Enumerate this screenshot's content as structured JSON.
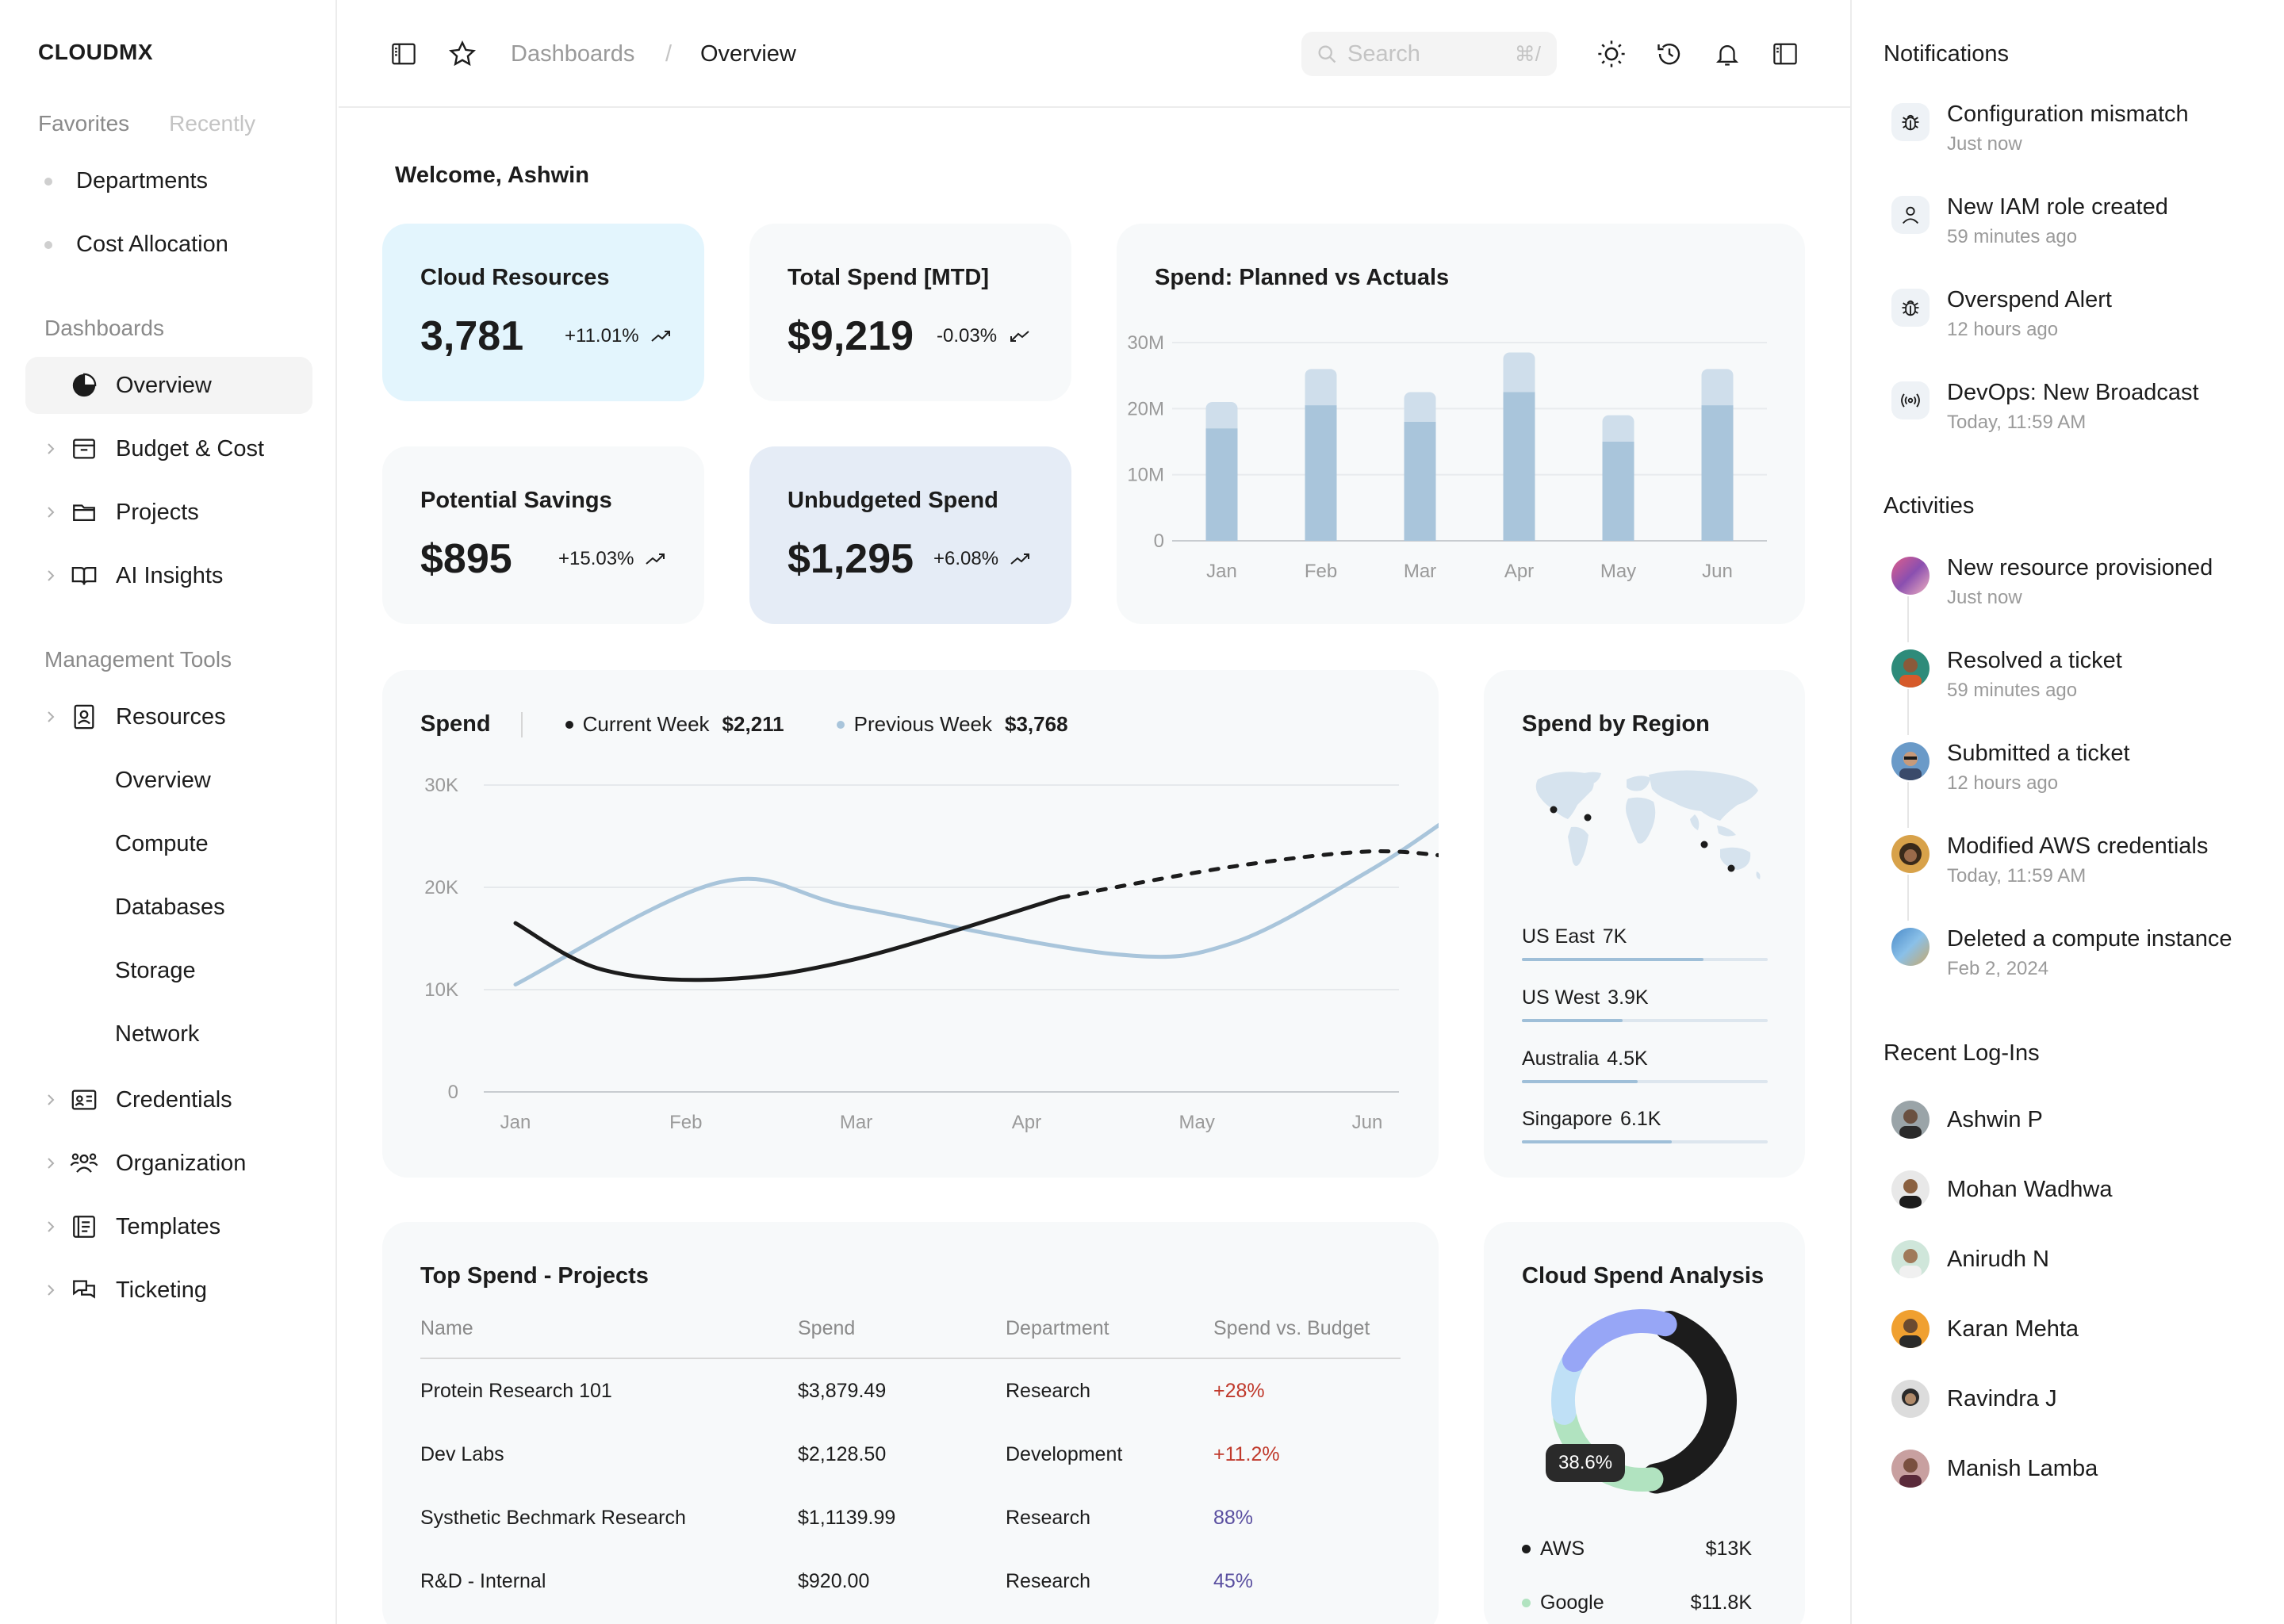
{
  "brand": "CLOUDMX",
  "sidebar": {
    "tabs": [
      "Favorites",
      "Recently"
    ],
    "favorites": [
      "Departments",
      "Cost Allocation"
    ],
    "dashboards_label": "Dashboards",
    "dashboards": [
      {
        "label": "Overview",
        "icon": "pie-chart-icon",
        "active": true
      },
      {
        "label": "Budget & Cost",
        "icon": "archive-box-icon"
      },
      {
        "label": "Projects",
        "icon": "folder-icon"
      },
      {
        "label": "AI Insights",
        "icon": "book-open-icon"
      }
    ],
    "management_label": "Management Tools",
    "resources": {
      "label": "Resources",
      "icon": "badge-id-icon"
    },
    "resources_sub": [
      "Overview",
      "Compute",
      "Databases",
      "Storage",
      "Network"
    ],
    "tools": [
      {
        "label": "Credentials",
        "icon": "id-card-icon"
      },
      {
        "label": "Organization",
        "icon": "users-icon"
      },
      {
        "label": "Templates",
        "icon": "template-icon"
      },
      {
        "label": "Ticketing",
        "icon": "chat-bubbles-icon"
      }
    ]
  },
  "topbar": {
    "breadcrumb": [
      "Dashboards",
      "/",
      "Overview"
    ],
    "search_placeholder": "Search",
    "search_shortcut": "⌘/"
  },
  "main": {
    "welcome": "Welcome, Ashwin",
    "kpis": [
      {
        "title": "Cloud Resources",
        "value": "3,781",
        "delta": "+11.01%",
        "trend": "up"
      },
      {
        "title": "Total Spend [MTD]",
        "value": "$9,219",
        "delta": "-0.03%",
        "trend": "down"
      },
      {
        "title": "Potential Savings",
        "value": "$895",
        "delta": "+15.03%",
        "trend": "up"
      },
      {
        "title": "Unbudgeted Spend",
        "value": "$1,295",
        "delta": "+6.08%",
        "trend": "up"
      }
    ],
    "spend_title": "Spend",
    "current_week_label": "Current Week",
    "current_week_value": "$2,211",
    "previous_week_label": "Previous Week",
    "previous_week_value": "$3,768",
    "region_title": "Spend by Region",
    "regions": [
      {
        "name": "US East",
        "value": "7K",
        "fraction": 0.74
      },
      {
        "name": "US West",
        "value": "3.9K",
        "fraction": 0.41
      },
      {
        "name": "Australia",
        "value": "4.5K",
        "fraction": 0.47
      },
      {
        "name": "Singapore",
        "value": "6.1K",
        "fraction": 0.61
      }
    ],
    "projects_title": "Top Spend - Projects",
    "projects_columns": [
      "Name",
      "Spend",
      "Department",
      "Spend vs. Budget"
    ],
    "projects": [
      {
        "name": "Protein Research 101",
        "spend": "$3,879.49",
        "department": "Research",
        "vs_budget": "+28%",
        "status": "over"
      },
      {
        "name": "Dev Labs",
        "spend": "$2,128.50",
        "department": "Development",
        "vs_budget": "+11.2%",
        "status": "over"
      },
      {
        "name": "Systhetic Bechmark Research",
        "spend": "$1,1139.99",
        "department": "Research",
        "vs_budget": "88%",
        "status": "under"
      },
      {
        "name": "R&D - Internal",
        "spend": "$920.00",
        "department": "Research",
        "vs_budget": "45%",
        "status": "under"
      }
    ],
    "analysis_title": "Cloud Spend Analysis",
    "analysis_badge": "38.6%",
    "analysis_legend": [
      {
        "name": "AWS",
        "value": "$13K",
        "color": "#1c1c1c"
      },
      {
        "name": "Google",
        "value": "$11.8K",
        "color": "#b1e3c0"
      }
    ]
  },
  "chart_data": [
    {
      "type": "bar",
      "title": "Spend: Planned vs Actuals",
      "categories": [
        "Jan",
        "Feb",
        "Mar",
        "Apr",
        "May",
        "Jun"
      ],
      "yticks": [
        "0",
        "10M",
        "20M",
        "30M"
      ],
      "ylim": [
        0,
        30
      ],
      "series": [
        {
          "values": [
            17,
            20.5,
            18,
            22.5,
            15,
            20.5
          ],
          "color": "#a9c5db"
        },
        {
          "values": [
            21,
            26,
            22.5,
            28.5,
            19,
            26
          ],
          "color": "#cfdeeb"
        }
      ],
      "stacked_overlay": true
    },
    {
      "type": "line",
      "title": "Spend",
      "x": [
        "Jan",
        "Feb",
        "Mar",
        "Apr",
        "May",
        "Jun"
      ],
      "yticks": [
        "0",
        "10K",
        "20K",
        "30K"
      ],
      "ylim": [
        0,
        30
      ],
      "series": [
        {
          "name": "Current Week",
          "color": "#1c1c1c",
          "x": [
            0,
            0.5,
            1.2,
            2.0,
            3.2
          ],
          "values": [
            16.5,
            12,
            11,
            13,
            19
          ],
          "dashed_from": 3.2,
          "dashed_x": [
            3.2,
            4.2,
            5.0,
            5.5
          ],
          "dashed_values": [
            19,
            22,
            23.5,
            23
          ]
        },
        {
          "name": "Previous Week",
          "color": "#a9c5db",
          "x": [
            0,
            1.2,
            2.0,
            3.5,
            4.2,
            5.0,
            5.5
          ],
          "values": [
            10.5,
            20.5,
            18,
            13.5,
            14.5,
            21.5,
            27
          ]
        }
      ]
    },
    {
      "type": "pie",
      "title": "Cloud Spend Analysis",
      "slices": [
        {
          "name": "AWS",
          "value": 38.6,
          "color": "#1c1c1c"
        },
        {
          "name": "Google",
          "value": 22,
          "color": "#b1e3c0"
        },
        {
          "value": 10,
          "color": "#bfe0f6"
        },
        {
          "value": 20,
          "color": "#97a6f6"
        }
      ]
    }
  ],
  "notifications_title": "Notifications",
  "notifications": [
    {
      "text": "Configuration mismatch",
      "time": "Just now",
      "icon": "bug-icon"
    },
    {
      "text": "New IAM role created",
      "time": "59 minutes ago",
      "icon": "user-icon"
    },
    {
      "text": "Overspend Alert",
      "time": "12 hours ago",
      "icon": "bug-icon"
    },
    {
      "text": "DevOps: New Broadcast",
      "time": "Today, 11:59 AM",
      "icon": "broadcast-icon"
    }
  ],
  "activities_title": "Activities",
  "activities": [
    {
      "text": "New resource provisioned",
      "time": "Just now"
    },
    {
      "text": "Resolved a ticket",
      "time": "59 minutes ago"
    },
    {
      "text": "Submitted a ticket",
      "time": "12 hours ago"
    },
    {
      "text": "Modified AWS credentials",
      "time": "Today, 11:59 AM"
    },
    {
      "text": "Deleted a compute instance",
      "time": "Feb 2, 2024"
    }
  ],
  "logins_title": "Recent Log-Ins",
  "logins": [
    "Ashwin P",
    "Mohan Wadhwa",
    "Anirudh N",
    "Karan Mehta",
    "Ravindra J",
    "Manish Lamba"
  ],
  "colors": {
    "accent_blue": "#a9c5db",
    "kpi_blue": "#e3f5fd",
    "kpi_slate": "#e5ecf6",
    "card_bg": "#f7f9fa",
    "negative": "#c0392b",
    "positive": "#5a4fa0"
  }
}
